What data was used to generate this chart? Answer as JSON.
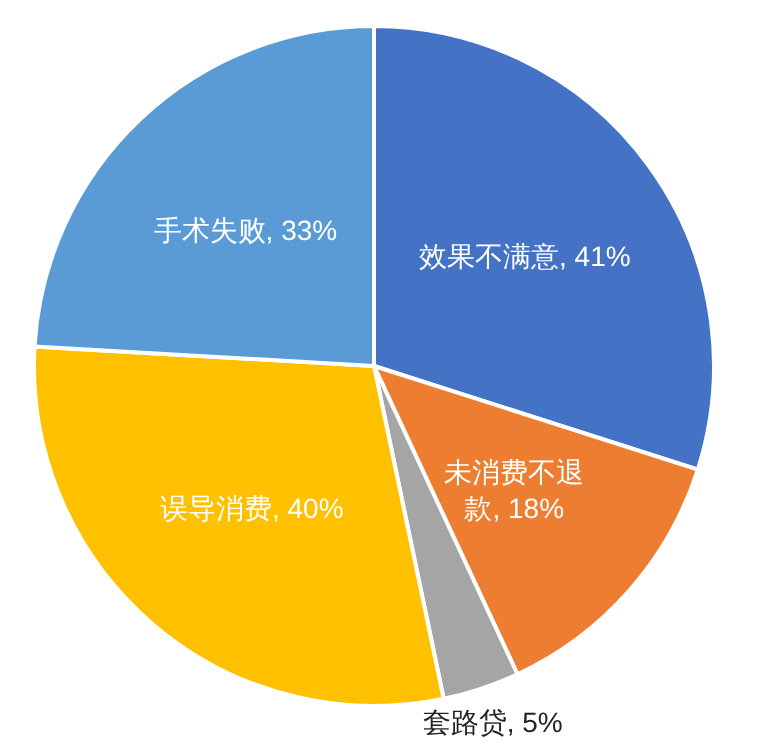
{
  "chart_data": {
    "type": "pie",
    "categories": [
      "效果不满意",
      "未消费不退款",
      "套路贷",
      "误导消费",
      "手术失败"
    ],
    "values": [
      41,
      18,
      5,
      40,
      33
    ],
    "value_labels": [
      "41%",
      "18%",
      "5%",
      "40%",
      "33%"
    ],
    "colors": [
      "#4472c4",
      "#ed7d31",
      "#a5a5a5",
      "#ffc000",
      "#5b9bd5"
    ],
    "legend": false
  }
}
